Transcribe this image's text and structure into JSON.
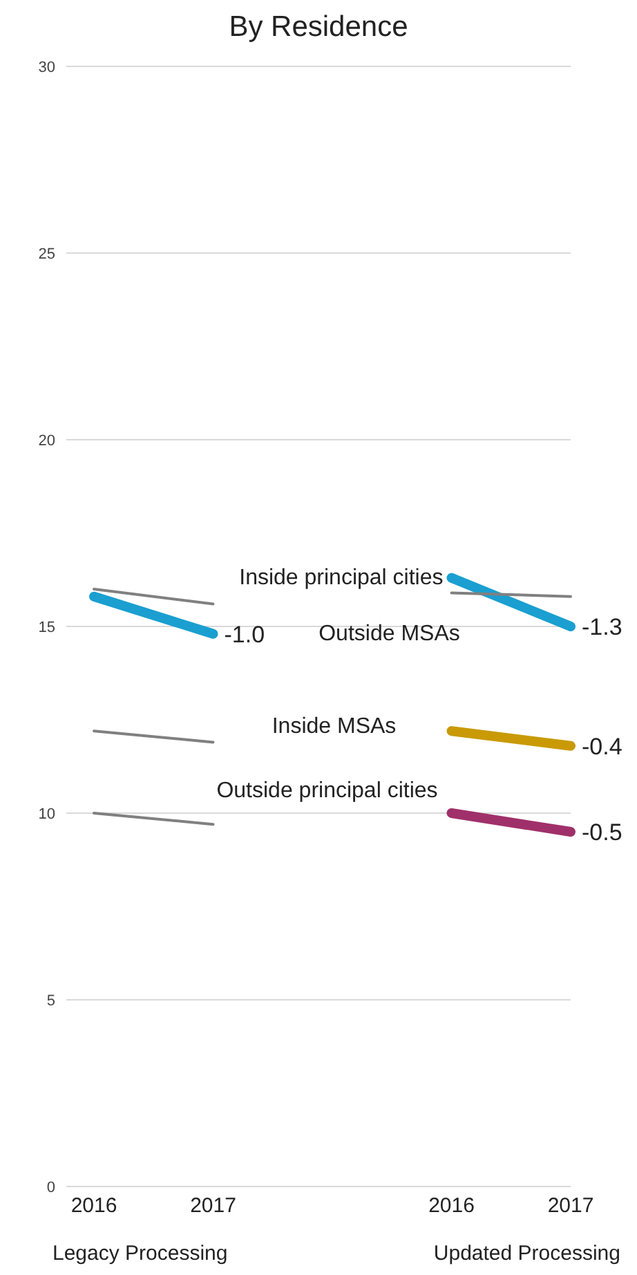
{
  "chart_data": {
    "type": "line",
    "title": "By Residence",
    "categories": [
      "2016",
      "2017",
      null,
      "2016",
      "2017"
    ],
    "series": [
      {
        "name": "Inside principal cities",
        "color": "#1a9fd0",
        "values": [
          15.8,
          14.8,
          null,
          16.3,
          15.0
        ]
      },
      {
        "name": "Outside MSAs",
        "color": "#808080",
        "values": [
          16.0,
          15.6,
          null,
          15.9,
          15.8
        ]
      },
      {
        "name": "Inside MSAs",
        "color": "#c99a06",
        "values": [
          null,
          null,
          null,
          12.2,
          11.8
        ]
      },
      {
        "color": "#808080",
        "values": [
          12.2,
          11.9,
          null,
          null,
          null
        ]
      },
      {
        "name": "Outside principal cities",
        "color": "#a0306a",
        "values": [
          null,
          null,
          null,
          10.0,
          9.5
        ]
      },
      {
        "color": "#808080",
        "values": [
          10.0,
          9.7,
          null,
          null,
          null
        ]
      }
    ],
    "ylim": [
      0,
      30
    ],
    "yticks": [
      0,
      5,
      10,
      15,
      20,
      25,
      30
    ],
    "grid": "y",
    "legend": false,
    "marker": "none",
    "line_style": "solid",
    "annotations": [
      "-1.0",
      "-1.3",
      "-0.4",
      "-0.5",
      "Legacy Processing",
      "Updated Processing"
    ]
  }
}
